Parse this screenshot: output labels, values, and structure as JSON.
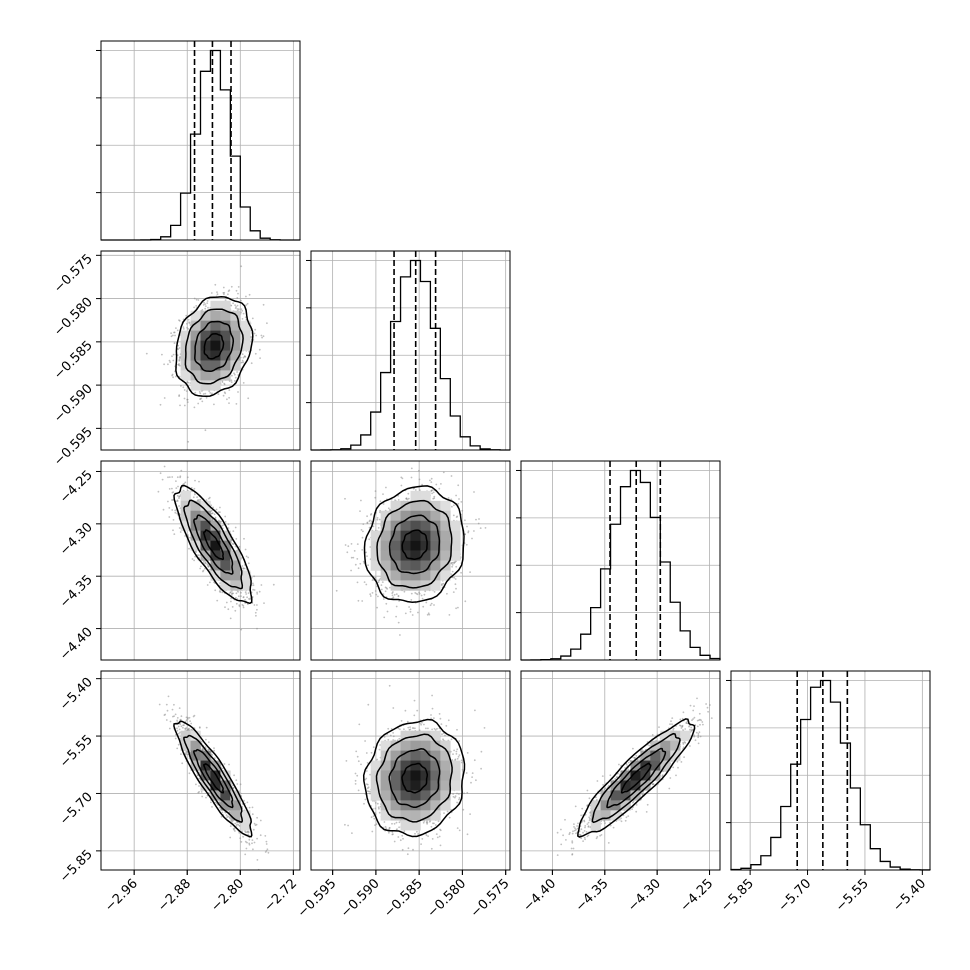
{
  "chart_data": {
    "type": "corner",
    "variables": [
      {
        "range": [
          -3.01,
          -2.71
        ],
        "ticks": [
          -2.96,
          -2.88,
          -2.8,
          -2.72
        ],
        "tick_labels": [
          "−2.96",
          "−2.88",
          "−2.80",
          "−2.72"
        ],
        "mean": -2.84,
        "sigma": 0.025,
        "quantiles": [
          -2.869,
          -2.842,
          -2.814
        ]
      },
      {
        "range": [
          -0.5975,
          -0.5745
        ],
        "ticks": [
          -0.595,
          -0.59,
          -0.585,
          -0.58,
          -0.575
        ],
        "tick_labels": [
          "−0.595",
          "−0.590",
          "−0.585",
          "−0.580",
          "−0.575"
        ],
        "mean": -0.5855,
        "sigma": 0.0025,
        "quantiles": [
          -0.5879,
          -0.5854,
          -0.5831
        ]
      },
      {
        "range": [
          -4.43,
          -4.24
        ],
        "ticks": [
          -4.4,
          -4.35,
          -4.3,
          -4.25
        ],
        "tick_labels": [
          "−4.40",
          "−4.35",
          "−4.30",
          "−4.25"
        ],
        "mean": -4.32,
        "sigma": 0.024,
        "quantiles": [
          -4.345,
          -4.32,
          -4.297
        ]
      },
      {
        "range": [
          -5.9,
          -5.38
        ],
        "ticks": [
          -5.85,
          -5.7,
          -5.55,
          -5.4
        ],
        "tick_labels": [
          "−5.85",
          "−5.70",
          "−5.55",
          "−5.40"
        ],
        "mean": -5.66,
        "sigma": 0.065,
        "quantiles": [
          -5.727,
          -5.66,
          -5.596
        ]
      }
    ],
    "correlations": [
      [
        1.0,
        0.2,
        -0.8,
        -0.9
      ],
      [
        0.2,
        1.0,
        0.1,
        0.1
      ],
      [
        -0.8,
        0.1,
        1.0,
        0.9
      ],
      [
        -0.9,
        0.1,
        0.9,
        1.0
      ]
    ],
    "histogram_bins": 20,
    "contour_levels_sigma": [
      0.5,
      1.0,
      1.5,
      2.0
    ],
    "grid": true,
    "colors": {
      "line": "#000000",
      "points": "#8c8c8c",
      "grid": "#b0b0b0"
    }
  }
}
